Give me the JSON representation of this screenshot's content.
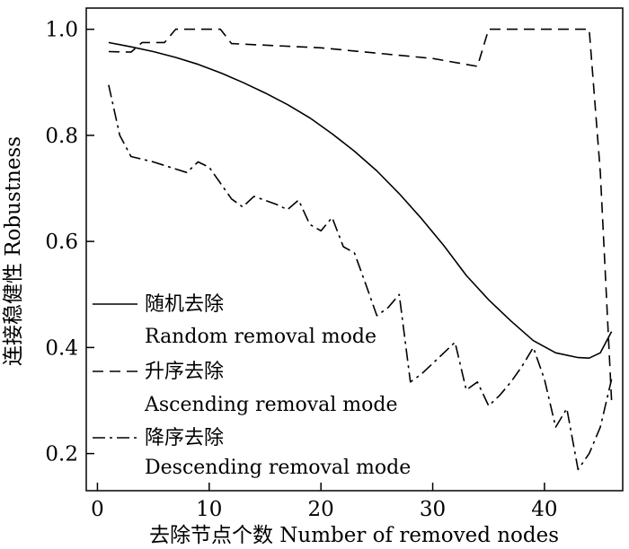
{
  "chart_data": {
    "type": "line",
    "xlabel": "去除节点个数 Number of removed nodes",
    "ylabel": "连接稳健性 Robustness",
    "xlim": [
      -1,
      47
    ],
    "ylim": [
      0.13,
      1.04
    ],
    "xticks": [
      0,
      10,
      20,
      30,
      40
    ],
    "yticks": [
      0.2,
      0.4,
      0.6,
      0.8,
      1.0
    ],
    "xtick_labels": [
      "0",
      "10",
      "20",
      "30",
      "40"
    ],
    "ytick_labels": [
      "0.2",
      "0.4",
      "0.6",
      "0.8",
      "1.0"
    ],
    "grid": false,
    "legend_position": "bottom-left",
    "series": [
      {
        "name": "随机去除",
        "name_en": "Random removal mode",
        "style": "solid",
        "x": [
          1,
          3,
          5,
          7,
          9,
          11,
          13,
          15,
          17,
          19,
          21,
          23,
          25,
          27,
          29,
          31,
          33,
          35,
          37,
          39,
          41,
          43,
          44,
          45,
          46
        ],
        "y": [
          0.975,
          0.967,
          0.958,
          0.947,
          0.934,
          0.918,
          0.9,
          0.88,
          0.858,
          0.833,
          0.803,
          0.77,
          0.733,
          0.69,
          0.643,
          0.592,
          0.536,
          0.49,
          0.45,
          0.413,
          0.39,
          0.381,
          0.38,
          0.39,
          0.43
        ]
      },
      {
        "name": "升序去除",
        "name_en": "Ascending removal mode",
        "style": "dashed",
        "x": [
          1,
          3,
          4,
          6,
          7,
          8,
          9,
          10,
          11,
          12,
          20,
          30,
          34,
          35,
          36,
          40,
          44,
          45,
          46
        ],
        "y": [
          0.958,
          0.957,
          0.975,
          0.975,
          1.0,
          1.0,
          1.0,
          1.0,
          1.0,
          0.973,
          0.965,
          0.945,
          0.93,
          1.0,
          1.0,
          1.0,
          1.0,
          0.73,
          0.3
        ]
      },
      {
        "name": "降序去除",
        "name_en": "Descending removal mode",
        "style": "dashdot",
        "x": [
          1,
          2,
          3,
          5,
          8,
          9,
          10,
          12,
          13,
          14,
          16,
          17,
          18,
          19,
          20,
          21,
          22,
          23,
          24,
          25,
          26,
          27,
          28,
          29,
          30,
          31,
          32,
          33,
          34,
          35,
          36,
          37,
          38,
          39,
          40,
          41,
          42,
          43,
          44,
          45,
          46
        ],
        "y": [
          0.895,
          0.8,
          0.76,
          0.75,
          0.73,
          0.75,
          0.74,
          0.68,
          0.665,
          0.685,
          0.67,
          0.66,
          0.678,
          0.632,
          0.62,
          0.645,
          0.59,
          0.578,
          0.52,
          0.46,
          0.475,
          0.5,
          0.335,
          0.35,
          0.37,
          0.39,
          0.41,
          0.32,
          0.335,
          0.29,
          0.31,
          0.335,
          0.365,
          0.4,
          0.34,
          0.25,
          0.285,
          0.17,
          0.2,
          0.25,
          0.34
        ]
      }
    ]
  }
}
